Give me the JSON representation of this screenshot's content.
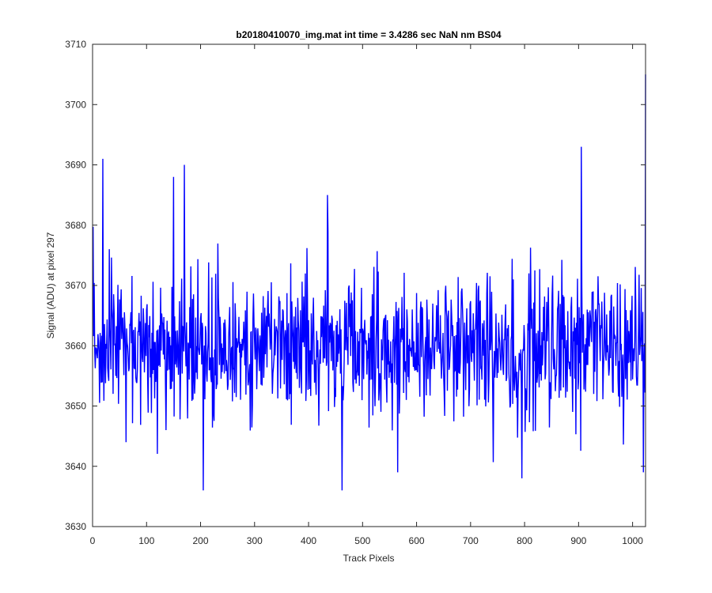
{
  "chart_data": {
    "type": "line",
    "title": "b20180410070_img.mat int time = 3.4286 sec  NaN nm BS04",
    "xlabel": "Track Pixels",
    "ylabel": "Signal (ADU) at pixel 297",
    "xlim": [
      0,
      1024
    ],
    "ylim": [
      3630,
      3710
    ],
    "xticks": [
      0,
      100,
      200,
      300,
      400,
      500,
      600,
      700,
      800,
      900,
      1000
    ],
    "yticks": [
      3630,
      3640,
      3650,
      3660,
      3670,
      3680,
      3690,
      3700,
      3710
    ],
    "grid": false,
    "legend": "none",
    "series": [
      {
        "color": "#0000ff",
        "x_start": 1,
        "x_step": 1,
        "count": 1024,
        "values_note_mean": 3660,
        "spikes": [
          {
            "x": 19,
            "y": 3691
          },
          {
            "x": 150,
            "y": 3688
          },
          {
            "x": 170,
            "y": 3690
          },
          {
            "x": 205,
            "y": 3636
          },
          {
            "x": 435,
            "y": 3685
          },
          {
            "x": 462,
            "y": 3636
          },
          {
            "x": 565,
            "y": 3639
          },
          {
            "x": 795,
            "y": 3638
          },
          {
            "x": 905,
            "y": 3693
          },
          {
            "x": 1020,
            "y": 3639
          },
          {
            "x": 1024,
            "y": 3705
          }
        ]
      }
    ]
  }
}
